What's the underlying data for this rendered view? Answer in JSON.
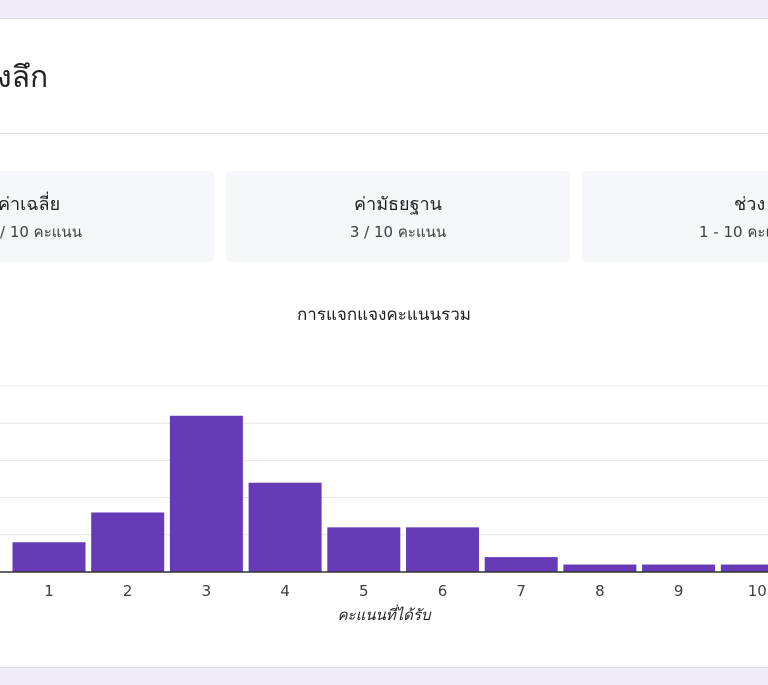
{
  "card": {
    "title": "งลึก"
  },
  "stats": [
    {
      "label": "ค่าเฉลี่ย",
      "value": "/ 10 คะแนน"
    },
    {
      "label": "ค่ามัธยฐาน",
      "value": "3 / 10 คะแนน"
    },
    {
      "label": "ช่วง",
      "value": "1 - 10 คะแ"
    }
  ],
  "colors": {
    "bar": "#673ab7",
    "background": "#efebf8",
    "stat_bg": "#f5f7fa"
  },
  "chart_data": {
    "type": "bar",
    "title": "การแจกแจงคะแนนรวม",
    "xlabel": "คะแนนที่ได้รับ",
    "ylabel": "",
    "categories": [
      "1",
      "2",
      "3",
      "4",
      "5",
      "6",
      "7",
      "8",
      "9",
      "10"
    ],
    "values": [
      8,
      16,
      42,
      24,
      12,
      12,
      4,
      2,
      2,
      2
    ],
    "ylim": [
      0,
      50
    ],
    "grid": true
  }
}
